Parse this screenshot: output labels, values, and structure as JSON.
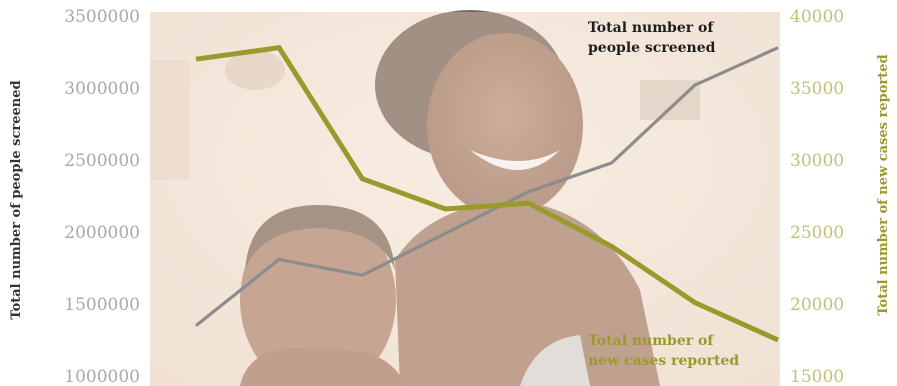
{
  "chart_data": {
    "type": "line",
    "x": [
      1,
      2,
      3,
      4,
      5,
      6,
      7,
      8
    ],
    "series": [
      {
        "name": "Total number of people screened",
        "axis": "left",
        "color": "#8c8c8c",
        "values": [
          1350000,
          1810000,
          1700000,
          1990000,
          2280000,
          2480000,
          3020000,
          3280000
        ]
      },
      {
        "name": "Total number of new cases reported",
        "axis": "right",
        "color": "#9a9a2c",
        "values": [
          37000,
          37800,
          28700,
          26600,
          27000,
          24000,
          20100,
          17500
        ]
      }
    ],
    "ylabel_left": "Total number of people screened",
    "ylabel_right": "Total number of new cases reported",
    "ylim_left": [
      1000000,
      3500000
    ],
    "ylim_right": [
      15000,
      40000
    ],
    "yticks_left": [
      "3500000",
      "3000000",
      "2500000",
      "2000000",
      "1500000",
      "1000000"
    ],
    "yticks_right": [
      "40000",
      "35000",
      "30000",
      "25000",
      "20000",
      "15000"
    ],
    "annotations": {
      "screened_line1": "Total number of",
      "screened_line2": "people screened",
      "cases_line1": "Total number of",
      "cases_line2": "new cases reported"
    },
    "colors": {
      "left_axis_title": "#333333",
      "right_axis_title": "#9a9a2c",
      "left_ticks": "#a8a8a8",
      "right_ticks": "#c2c07a"
    },
    "grid": false,
    "legend": "none"
  }
}
